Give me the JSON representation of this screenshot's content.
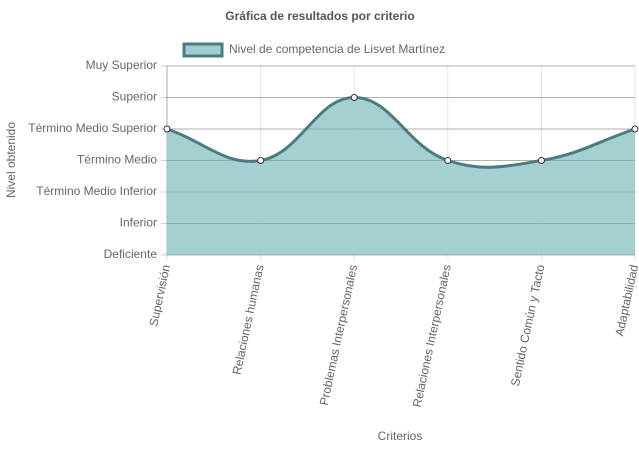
{
  "chart_data": {
    "type": "area",
    "title": "Gráfica de resultados por criterio",
    "x_label": "Criterios",
    "y_label": "Nivel obtenido",
    "categories": [
      "Supervisión",
      "Relaciones humanas",
      "Problemas Interpersonales",
      "Relaciones Interpersonales",
      "Sentido Común y Tacto",
      "Adaptabilidad"
    ],
    "series": [
      {
        "name": "Nivel de competencia de Lisvet Martínez",
        "color": "#4e7b80",
        "fill": "#a0cdd0",
        "values": [
          4,
          3,
          5,
          3,
          3,
          4
        ]
      }
    ],
    "ylim": [
      0,
      6
    ],
    "yticks": [
      {
        "value": 0,
        "label": "Deficiente"
      },
      {
        "value": 1,
        "label": "Inferior"
      },
      {
        "value": 2,
        "label": "Término Medio Inferior"
      },
      {
        "value": 3,
        "label": "Término Medio"
      },
      {
        "value": 4,
        "label": "Término Medio Superior"
      },
      {
        "value": 5,
        "label": "Superior"
      },
      {
        "value": 6,
        "label": "Muy Superior"
      }
    ],
    "grid": true,
    "legend": "top"
  }
}
